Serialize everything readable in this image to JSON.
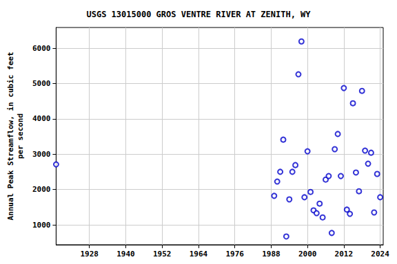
{
  "chart_data": {
    "type": "scatter",
    "title": "USGS 13015000 GROS VENTRE RIVER AT ZENITH, WY",
    "ylabel": "Annual Peak Streamflow, in cubic feet\nper second",
    "x": [
      1917,
      1989,
      1990,
      1991,
      1992,
      1993,
      1994,
      1995,
      1996,
      1997,
      1998,
      1999,
      2000,
      2001,
      2002,
      2003,
      2004,
      2005,
      2006,
      2007,
      2008,
      2009,
      2010,
      2011,
      2012,
      2013,
      2014,
      2015,
      2016,
      2017,
      2018,
      2019,
      2020,
      2021,
      2022,
      2023,
      2024
    ],
    "values": [
      2710,
      1820,
      2225,
      2500,
      3410,
      670,
      1720,
      2500,
      2690,
      5260,
      6190,
      1780,
      3080,
      1930,
      1410,
      1330,
      1600,
      1210,
      2280,
      2380,
      770,
      3140,
      3570,
      2380,
      4870,
      1430,
      1310,
      4440,
      2480,
      1950,
      4790,
      3100,
      2730,
      3040,
      1350,
      2440,
      1780
    ],
    "color": "#0000cc",
    "marker": "circle",
    "xlim": [
      1917,
      2025
    ],
    "xticks": [
      1928,
      1940,
      1952,
      1964,
      1976,
      1988,
      2000,
      2012,
      2024
    ],
    "ylim": [
      436,
      6584
    ],
    "yticks": [
      1000,
      2000,
      3000,
      4000,
      5000,
      6000
    ],
    "grid": true
  }
}
